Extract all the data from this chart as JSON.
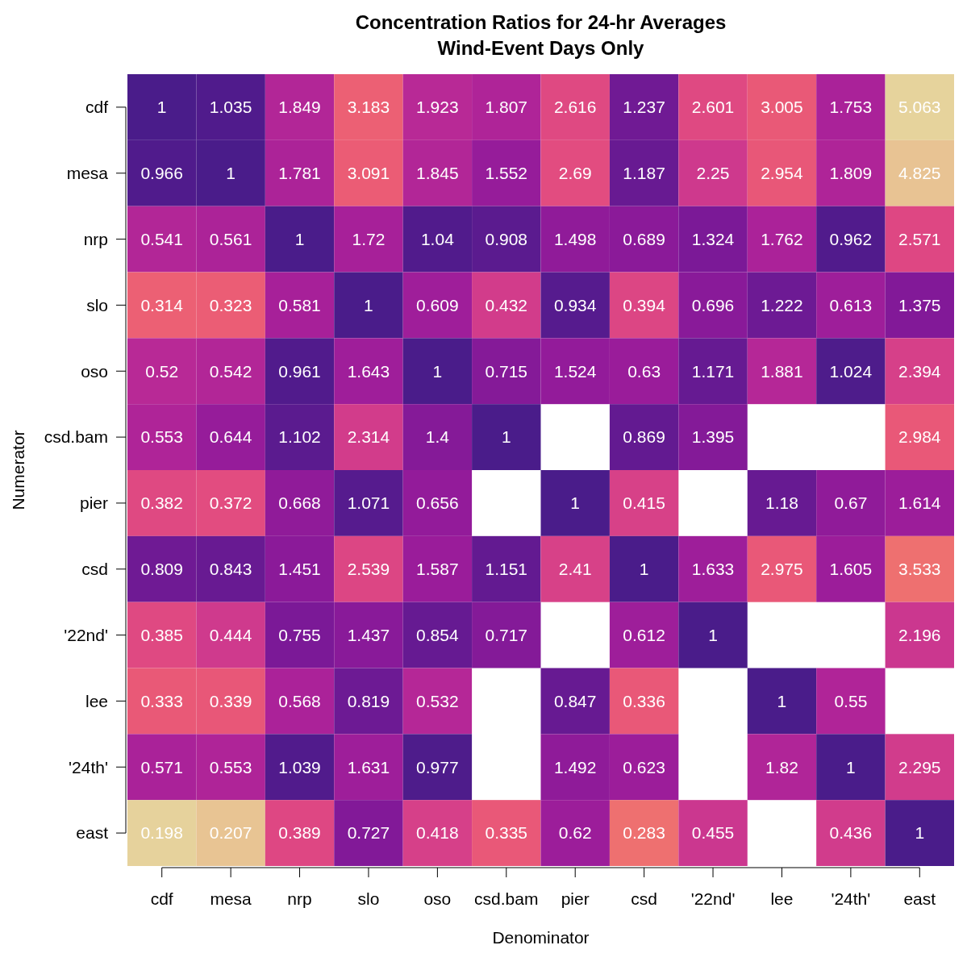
{
  "chart_data": {
    "type": "heatmap",
    "title": "Concentration Ratios for 24-hr Averages",
    "subtitle": "Wind-Event Days Only",
    "xlabel": "Denominator",
    "ylabel": "Numerator",
    "data_labels": true,
    "categories": [
      "cdf",
      "mesa",
      "nrp",
      "slo",
      "oso",
      "csd.bam",
      "pier",
      "csd",
      "'22nd'",
      "lee",
      "'24th'",
      "east"
    ],
    "y_categories": [
      "cdf",
      "mesa",
      "nrp",
      "slo",
      "oso",
      "csd.bam",
      "pier",
      "csd",
      "'22nd'",
      "lee",
      "'24th'",
      "east"
    ],
    "cells": [
      [
        1,
        1.035,
        1.849,
        3.183,
        1.923,
        1.807,
        2.616,
        1.237,
        2.601,
        3.005,
        1.753,
        5.063
      ],
      [
        0.966,
        1,
        1.781,
        3.091,
        1.845,
        1.552,
        2.69,
        1.187,
        2.25,
        2.954,
        1.809,
        4.825
      ],
      [
        0.541,
        0.561,
        1,
        1.72,
        1.04,
        0.908,
        1.498,
        0.689,
        1.324,
        1.762,
        0.962,
        2.571
      ],
      [
        0.314,
        0.323,
        0.581,
        1,
        0.609,
        0.432,
        0.934,
        0.394,
        0.696,
        1.222,
        0.613,
        1.375
      ],
      [
        0.52,
        0.542,
        0.961,
        1.643,
        1,
        0.715,
        1.524,
        0.63,
        1.171,
        1.881,
        1.024,
        2.394
      ],
      [
        0.553,
        0.644,
        1.102,
        2.314,
        1.4,
        1,
        null,
        0.869,
        1.395,
        null,
        null,
        2.984
      ],
      [
        0.382,
        0.372,
        0.668,
        1.071,
        0.656,
        null,
        1,
        0.415,
        null,
        1.18,
        0.67,
        1.614
      ],
      [
        0.809,
        0.843,
        1.451,
        2.539,
        1.587,
        1.151,
        2.41,
        1,
        1.633,
        2.975,
        1.605,
        3.533
      ],
      [
        0.385,
        0.444,
        0.755,
        1.437,
        0.854,
        0.717,
        null,
        0.612,
        1,
        null,
        null,
        2.196
      ],
      [
        0.333,
        0.339,
        0.568,
        0.819,
        0.532,
        null,
        0.847,
        0.336,
        null,
        1,
        0.55,
        null
      ],
      [
        0.571,
        0.553,
        1.039,
        1.631,
        0.977,
        null,
        1.492,
        0.623,
        null,
        1.82,
        1,
        2.295
      ],
      [
        0.198,
        0.207,
        0.389,
        0.727,
        0.418,
        0.335,
        0.62,
        0.283,
        0.455,
        null,
        0.436,
        1
      ]
    ]
  }
}
